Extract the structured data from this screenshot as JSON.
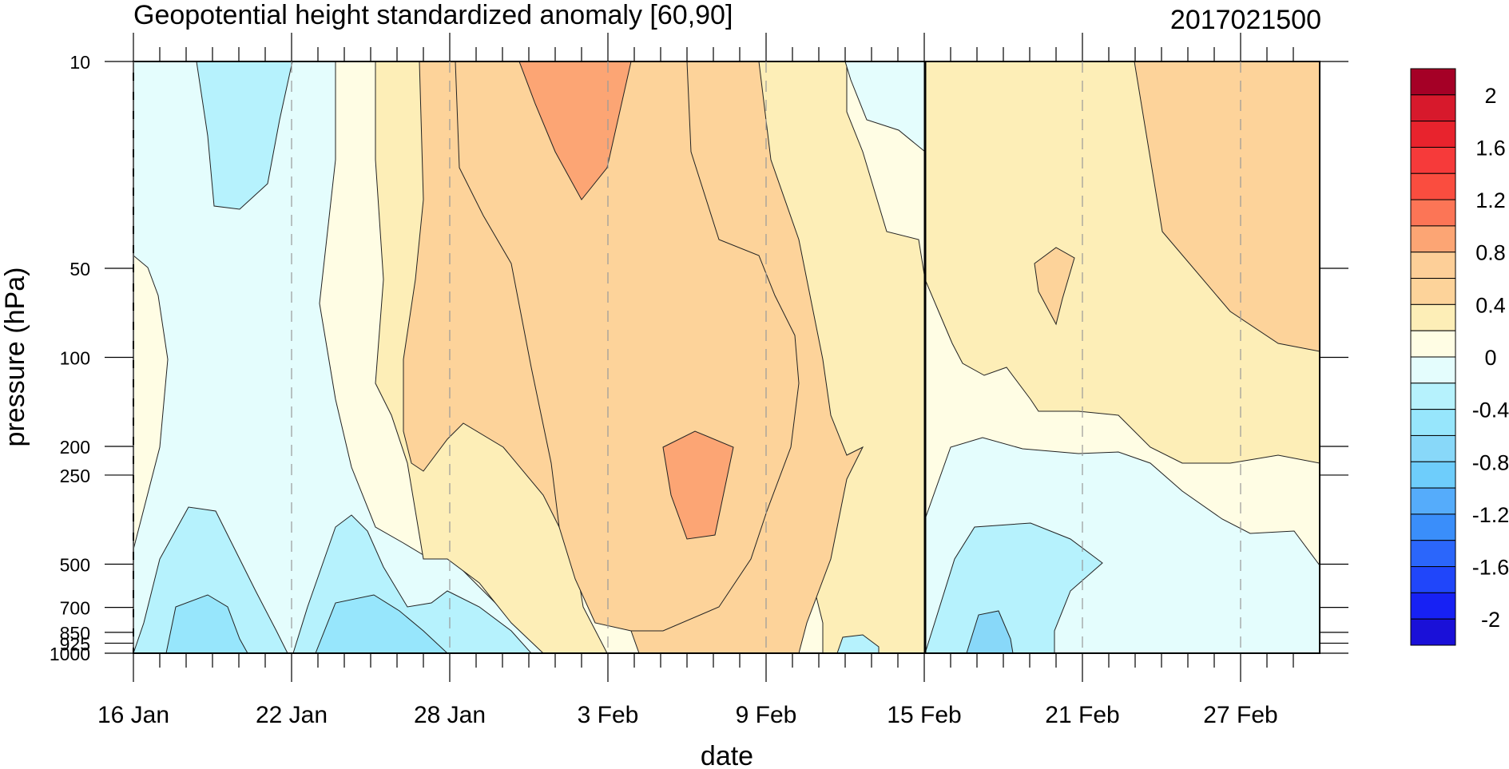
{
  "chart_data": {
    "type": "heatmap",
    "title": "Geopotential height standardized anomaly [60,90]",
    "date_label": "2017021500",
    "xlabel": "date",
    "ylabel": "pressure (hPa)",
    "x_ticks": [
      "16 Jan",
      "22 Jan",
      "28 Jan",
      "3 Feb",
      "9 Feb",
      "15 Feb",
      "21 Feb",
      "27 Feb"
    ],
    "x_tick_days": [
      0,
      6,
      12,
      18,
      24,
      30,
      36,
      42
    ],
    "x_range_days": [
      0,
      45
    ],
    "y_ticks": [
      "10",
      "50",
      "100",
      "200",
      "250",
      "500",
      "700",
      "850",
      "925",
      "1000"
    ],
    "y_tick_values": [
      10,
      50,
      100,
      200,
      250,
      500,
      700,
      850,
      925,
      1000
    ],
    "y_scale": "log",
    "y_range": [
      1000,
      10
    ],
    "current_date_line": "15 Feb",
    "legend": {
      "placement": "right",
      "labels": [
        "2",
        "1.6",
        "1.2",
        "0.8",
        "0.4",
        "0",
        "-0.4",
        "-0.8",
        "-1.2",
        "-1.6",
        "-2"
      ],
      "levels": [
        2.2,
        2.0,
        1.8,
        1.6,
        1.4,
        1.2,
        1.0,
        0.8,
        0.6,
        0.4,
        0.2,
        0,
        -0.2,
        -0.4,
        -0.6,
        -0.8,
        -1.0,
        -1.2,
        -1.4,
        -1.6,
        -1.8,
        -2.0,
        -2.2
      ],
      "colors": [
        "#a50026",
        "#d7192c",
        "#e8232d",
        "#f63a3a",
        "#fa4d3f",
        "#fc7556",
        "#fca574",
        "#fdcf98",
        "#fdd39a",
        "#fdeeb7",
        "#fffde4",
        "#e4fdfd",
        "#b6f2fd",
        "#97e6fc",
        "#88d8f9",
        "#6ecdfb",
        "#55acfb",
        "#3a8efa",
        "#2b66fb",
        "#2046fa",
        "#1721f4",
        "#1a10d8"
      ]
    }
  }
}
